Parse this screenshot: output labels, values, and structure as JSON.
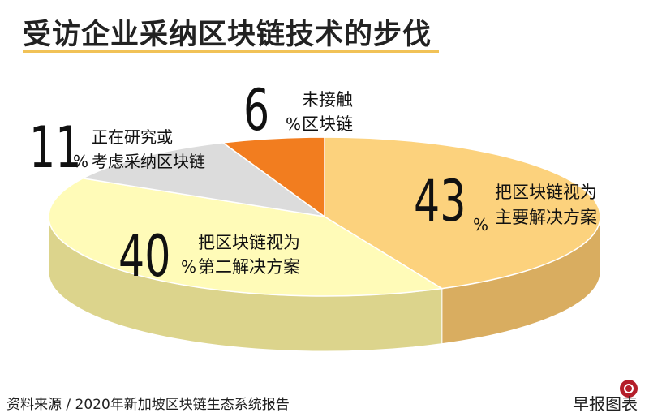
{
  "title": "受访企业采纳区块链技术的步伐",
  "source": "资料来源 / 2020年新加坡区块链生态系统报告",
  "brand": "早报图表",
  "colors": {
    "main": "#fcd27d",
    "main_side": "#d9ad60",
    "second": "#fffbb8",
    "second_side": "#dcd48c",
    "research": "#dcdcdc",
    "research_side": "#b7b7b7",
    "notouch": "#f27d1f",
    "notouch_side": "#c25f12"
  },
  "chart_data": {
    "type": "pie",
    "slices": [
      {
        "key": "main",
        "value": 43,
        "number": "43",
        "unit": "%",
        "label": [
          "把区块链视为",
          "主要解决方案"
        ]
      },
      {
        "key": "second",
        "value": 40,
        "number": "40",
        "unit": "%",
        "label": [
          "把区块链视为",
          "第二解决方案"
        ]
      },
      {
        "key": "research",
        "value": 11,
        "number": "11",
        "unit": "%",
        "label": [
          "正在研究或",
          "考虑采纳区块链"
        ]
      },
      {
        "key": "notouch",
        "value": 6,
        "number": "6",
        "unit": "%",
        "label": [
          "未接触",
          "区块链"
        ]
      }
    ]
  }
}
